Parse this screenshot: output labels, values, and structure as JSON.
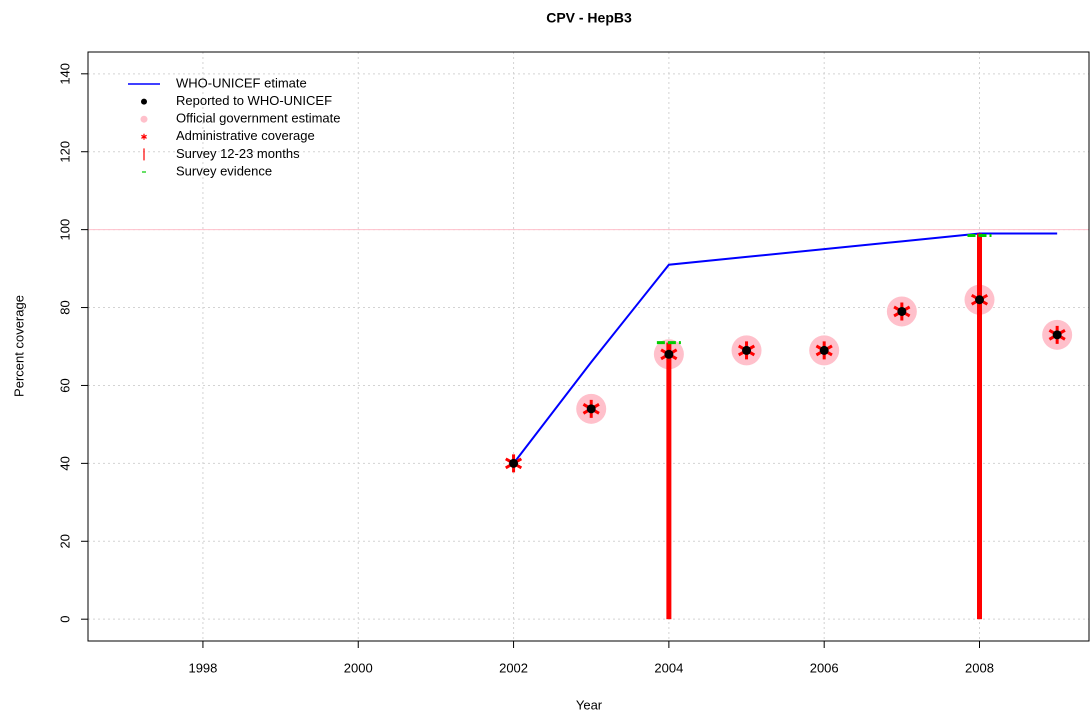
{
  "chart_data": {
    "type": "line",
    "title": "CPV  -  HepB3",
    "x_label": "Year",
    "y_label": "Percent coverage",
    "xlim": [
      1996.52,
      2009.41
    ],
    "ylim": [
      -5.6,
      145.6
    ],
    "xticks": [
      1998,
      2000,
      2002,
      2004,
      2006,
      2008
    ],
    "yticks": [
      0,
      20,
      40,
      60,
      80,
      100,
      120,
      140
    ],
    "grid": true,
    "legend": "top-left",
    "hline": {
      "value": 100,
      "color": "#ffc0cb"
    },
    "series": [
      {
        "name": "WHO-UNICEF etimate",
        "color": "#0000ff",
        "marker": "line",
        "x": [
          2002,
          2003,
          2004,
          2005,
          2006,
          2007,
          2008,
          2009
        ],
        "values": [
          40,
          66,
          91,
          93,
          95,
          97,
          99,
          99
        ]
      },
      {
        "name": "Reported to WHO-UNICEF",
        "color": "#000000",
        "marker": "dot",
        "x": [
          2002,
          2003,
          2004,
          2005,
          2006,
          2007,
          2008,
          2009
        ],
        "values": [
          40,
          54,
          68,
          69,
          69,
          79,
          82,
          73
        ]
      },
      {
        "name": "Official government estimate",
        "color": "#ffc0cb",
        "marker": "circle",
        "x": [
          2002,
          2003,
          2004,
          2005,
          2006,
          2007,
          2008,
          2009
        ],
        "values": [
          null,
          54,
          68,
          69,
          69,
          79,
          82,
          73
        ]
      },
      {
        "name": "Administrative coverage",
        "color": "#ff0000",
        "marker": "star",
        "x": [
          2002,
          2003,
          2004,
          2005,
          2006,
          2007,
          2008,
          2009
        ],
        "values": [
          40,
          54,
          68,
          69,
          69,
          79,
          82,
          73
        ]
      },
      {
        "name": "Survey 12-23 months",
        "color": "#ff0000",
        "marker": "bar",
        "x": [
          2004,
          2008
        ],
        "values": [
          71,
          99
        ]
      },
      {
        "name": "Survey evidence",
        "color": "#00cc00",
        "marker": "tick",
        "x": [
          2004,
          2008
        ],
        "values": [
          71,
          98.5
        ]
      }
    ]
  }
}
